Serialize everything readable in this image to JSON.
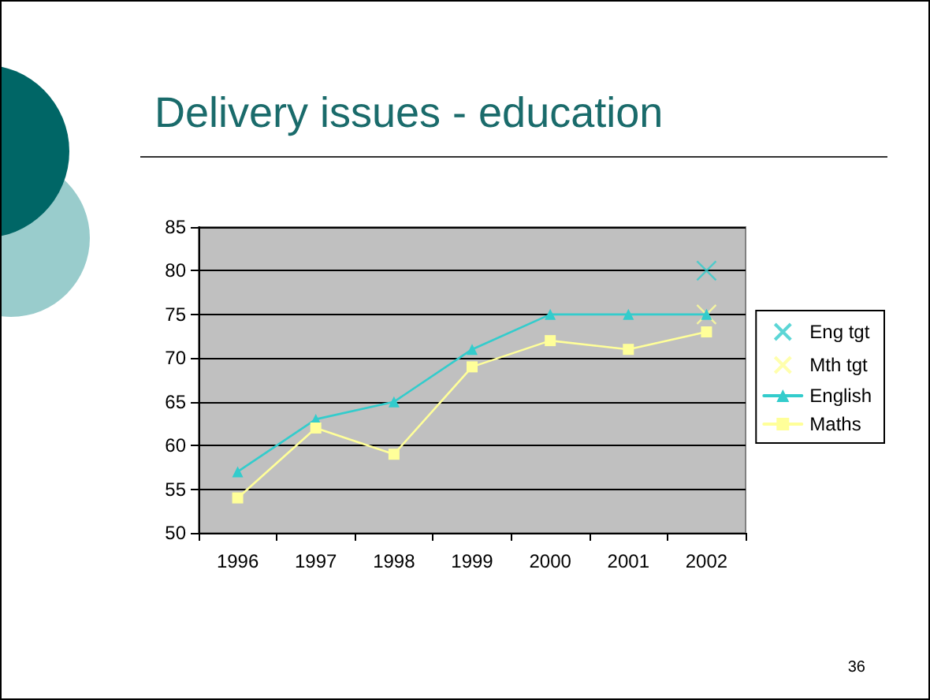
{
  "chart_data": {
    "type": "line",
    "title": "Delivery issues - education",
    "categories": [
      "1996",
      "1997",
      "1998",
      "1999",
      "2000",
      "2001",
      "2002"
    ],
    "series": [
      {
        "name": "Eng tgt",
        "type": "scatter",
        "marker": "cross",
        "color": "#33cccc",
        "values": [
          null,
          null,
          null,
          null,
          null,
          null,
          80
        ]
      },
      {
        "name": "Mth tgt",
        "type": "scatter",
        "marker": "cross",
        "color": "#ffff99",
        "values": [
          null,
          null,
          null,
          null,
          null,
          null,
          75
        ]
      },
      {
        "name": "English",
        "marker": "triangle",
        "color": "#33cccc",
        "values": [
          57,
          63,
          65,
          71,
          75,
          75,
          75
        ]
      },
      {
        "name": "Maths",
        "marker": "square",
        "color": "#ffff99",
        "values": [
          54,
          62,
          59,
          69,
          72,
          71,
          73
        ]
      }
    ],
    "ylim": [
      50,
      85
    ],
    "yticks": [
      50,
      55,
      60,
      65,
      70,
      75,
      80,
      85
    ],
    "grid": "y",
    "legend": "right",
    "line_style": "solid",
    "annotations": [
      "36"
    ]
  }
}
